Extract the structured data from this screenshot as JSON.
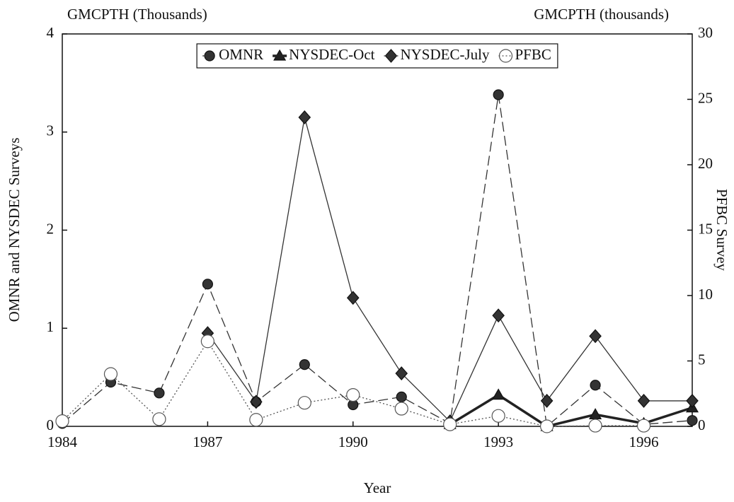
{
  "chart_data": {
    "type": "line",
    "y_title": "GMCPTH (Thousands)",
    "y2_title": "GMCPTH (thousands)",
    "xlabel": "Year",
    "ylabel": "OMNR and NYSDEC Surveys",
    "y2label": "PFBC Survey",
    "x": [
      1984,
      1985,
      1986,
      1987,
      1988,
      1989,
      1990,
      1991,
      1992,
      1993,
      1994,
      1995,
      1996,
      1997
    ],
    "xlim": [
      1984,
      1997
    ],
    "xticks": [
      1984,
      1987,
      1990,
      1993,
      1996
    ],
    "ylim": [
      0,
      4
    ],
    "yticks": [
      0,
      1,
      2,
      3,
      4
    ],
    "y2lim": [
      0,
      30
    ],
    "y2ticks": [
      0,
      5,
      10,
      15,
      20,
      25,
      30
    ],
    "legend": "top",
    "series": [
      {
        "name": "OMNR",
        "color": "#333333",
        "marker": "circle",
        "line_style": "dashed",
        "values": [
          0.03,
          0.45,
          0.34,
          1.45,
          0.25,
          0.63,
          0.22,
          0.3,
          0.03,
          3.38,
          0.0,
          0.42,
          0.02,
          0.06
        ]
      },
      {
        "name": "NYSDEC-Oct",
        "color": "#222222",
        "marker": "triangle",
        "line_style": "thick",
        "values": [
          null,
          null,
          null,
          null,
          null,
          null,
          null,
          null,
          0.02,
          0.32,
          0.0,
          0.12,
          0.03,
          0.19
        ]
      },
      {
        "name": "NYSDEC-July",
        "color": "#333333",
        "marker": "diamond",
        "line_style": "solid",
        "values": [
          null,
          null,
          null,
          0.95,
          0.25,
          3.15,
          1.31,
          0.54,
          0.05,
          1.13,
          0.26,
          0.92,
          0.26,
          0.26
        ]
      },
      {
        "name": "PFBC",
        "color": "#555555",
        "marker": "open-circle",
        "line_style": "dotted",
        "axis": "y2",
        "values": [
          0.4,
          4.0,
          0.55,
          6.5,
          0.5,
          1.8,
          2.4,
          1.35,
          0.15,
          0.8,
          0.0,
          0.05,
          0.05,
          null
        ]
      }
    ]
  }
}
